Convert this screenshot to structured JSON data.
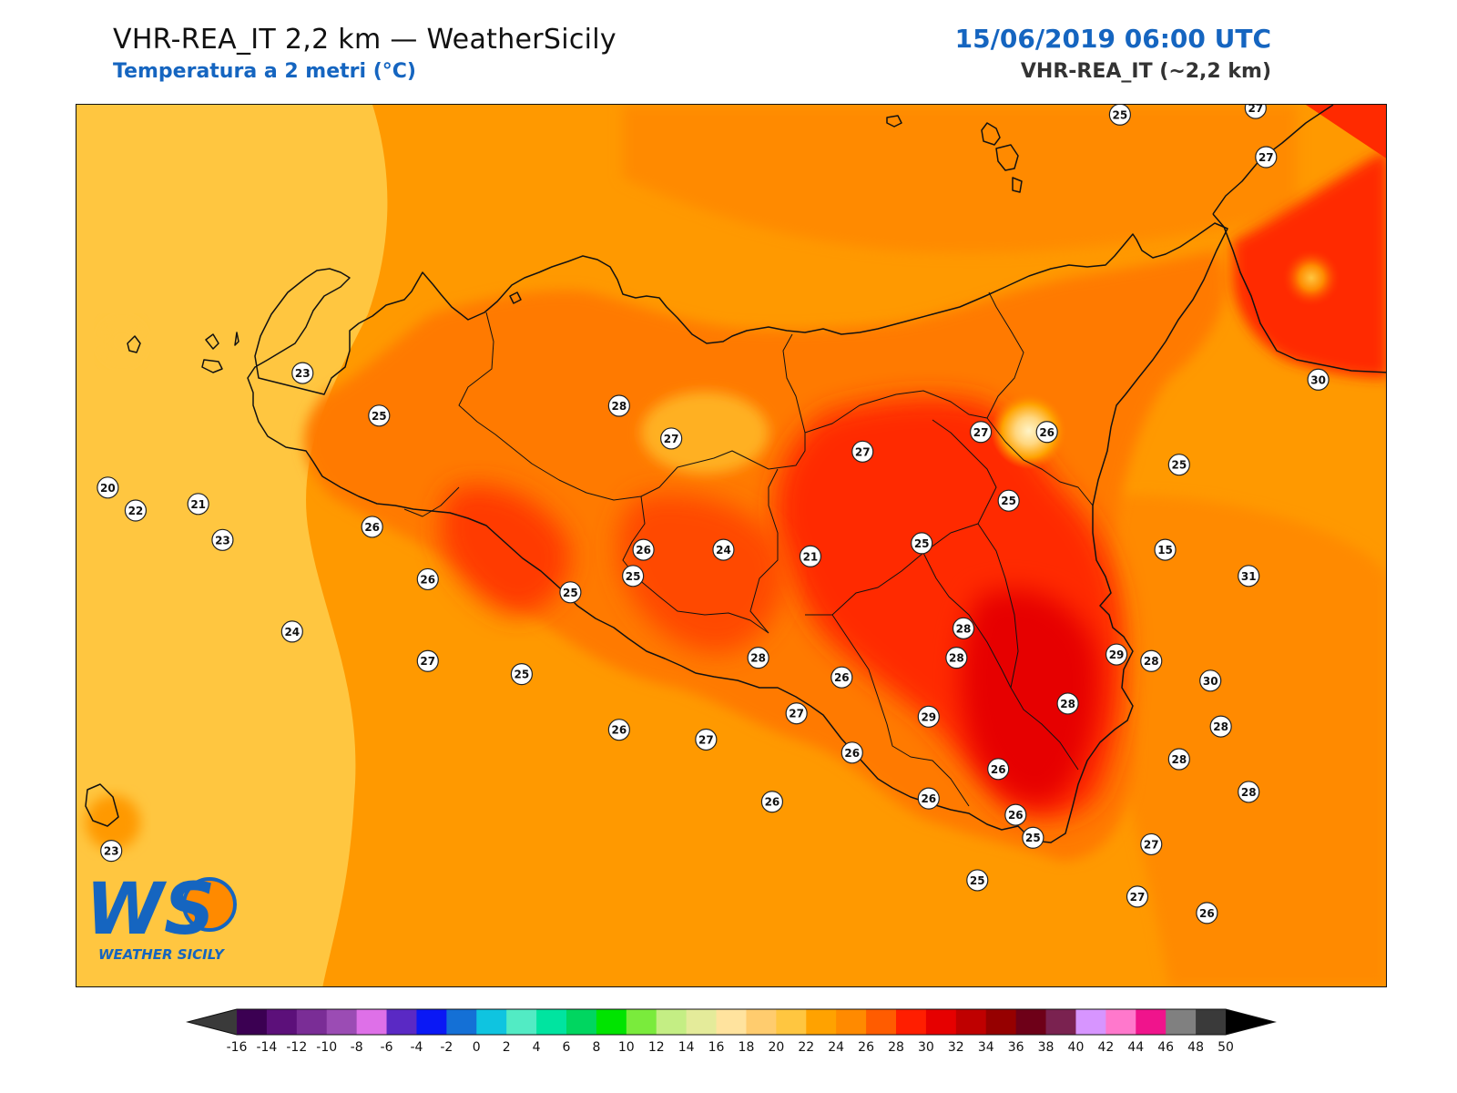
{
  "header": {
    "title": "VHR-REA_IT 2,2 km — WeatherSicily",
    "subtitle": "Temperatura a 2 metri (°C)",
    "datetime": "15/06/2019 06:00 UTC",
    "model": "VHR-REA_IT (~2,2 km)"
  },
  "logo": {
    "letters": "WS",
    "caption": "WEATHER SICILY"
  },
  "colorbar": {
    "ticks": [
      "-16",
      "-14",
      "-12",
      "-10",
      "-8",
      "-6",
      "-4",
      "-2",
      "0",
      "2",
      "4",
      "6",
      "8",
      "10",
      "12",
      "14",
      "16",
      "18",
      "20",
      "22",
      "24",
      "26",
      "28",
      "30",
      "32",
      "34",
      "36",
      "38",
      "40",
      "42",
      "44",
      "46",
      "48",
      "50"
    ],
    "colors": [
      "#3b0052",
      "#5c107a",
      "#7a2d96",
      "#9b4cb4",
      "#de70e8",
      "#5a29c4",
      "#0a18f5",
      "#1470d6",
      "#0fc4e0",
      "#52ebc4",
      "#00e4a0",
      "#00d660",
      "#00e400",
      "#7aeb3c",
      "#c4ee84",
      "#e4eb9a",
      "#ffe39e",
      "#ffcc6e",
      "#ffc640",
      "#ffa200",
      "#ff8a00",
      "#ff5c00",
      "#ff1e00",
      "#e60000",
      "#bf0000",
      "#960000",
      "#6e0018",
      "#7a2250",
      "#d795ff",
      "#ff78cc",
      "#f0148c",
      "#808080",
      "#3a3a3a"
    ],
    "under_color": "#3a3a3a",
    "over_color": "#000000"
  },
  "stations": [
    {
      "value": "25",
      "lon": 14.85,
      "lat": 39.07
    },
    {
      "value": "27",
      "lon": 15.24,
      "lat": 39.09
    },
    {
      "value": "27",
      "lon": 15.27,
      "lat": 38.94
    },
    {
      "value": "23",
      "lon": 12.5,
      "lat": 38.28
    },
    {
      "value": "25",
      "lon": 12.72,
      "lat": 38.15
    },
    {
      "value": "28",
      "lon": 13.41,
      "lat": 38.18
    },
    {
      "value": "27",
      "lon": 13.56,
      "lat": 38.08
    },
    {
      "value": "27",
      "lon": 14.11,
      "lat": 38.04
    },
    {
      "value": "27",
      "lon": 14.45,
      "lat": 38.1
    },
    {
      "value": "26",
      "lon": 14.64,
      "lat": 38.1
    },
    {
      "value": "25",
      "lon": 15.02,
      "lat": 38.0
    },
    {
      "value": "30",
      "lon": 15.42,
      "lat": 38.26
    },
    {
      "value": "20",
      "lon": 11.94,
      "lat": 37.93
    },
    {
      "value": "21",
      "lon": 12.2,
      "lat": 37.88
    },
    {
      "value": "22",
      "lon": 12.02,
      "lat": 37.86
    },
    {
      "value": "26",
      "lon": 12.7,
      "lat": 37.81
    },
    {
      "value": "26",
      "lon": 13.48,
      "lat": 37.74
    },
    {
      "value": "25",
      "lon": 14.28,
      "lat": 37.76
    },
    {
      "value": "25",
      "lon": 14.53,
      "lat": 37.89
    },
    {
      "value": "31",
      "lon": 15.22,
      "lat": 37.66
    },
    {
      "value": "23",
      "lon": 12.27,
      "lat": 37.77
    },
    {
      "value": "26",
      "lon": 12.86,
      "lat": 37.65
    },
    {
      "value": "25",
      "lon": 13.27,
      "lat": 37.61
    },
    {
      "value": "25",
      "lon": 13.45,
      "lat": 37.66
    },
    {
      "value": "24",
      "lon": 13.71,
      "lat": 37.74
    },
    {
      "value": "21",
      "lon": 13.96,
      "lat": 37.72
    },
    {
      "value": "15",
      "lon": 14.98,
      "lat": 37.74
    },
    {
      "value": "24",
      "lon": 12.47,
      "lat": 37.49
    },
    {
      "value": "28",
      "lon": 14.4,
      "lat": 37.5
    },
    {
      "value": "25",
      "lon": 13.13,
      "lat": 37.36
    },
    {
      "value": "27",
      "lon": 12.86,
      "lat": 37.4
    },
    {
      "value": "28",
      "lon": 13.81,
      "lat": 37.41
    },
    {
      "value": "26",
      "lon": 14.05,
      "lat": 37.35
    },
    {
      "value": "28",
      "lon": 14.38,
      "lat": 37.41
    },
    {
      "value": "29",
      "lon": 14.84,
      "lat": 37.42
    },
    {
      "value": "28",
      "lon": 14.94,
      "lat": 37.4
    },
    {
      "value": "30",
      "lon": 15.11,
      "lat": 37.34
    },
    {
      "value": "26",
      "lon": 13.41,
      "lat": 37.19
    },
    {
      "value": "27",
      "lon": 13.66,
      "lat": 37.16
    },
    {
      "value": "27",
      "lon": 13.92,
      "lat": 37.24
    },
    {
      "value": "26",
      "lon": 14.08,
      "lat": 37.12
    },
    {
      "value": "28",
      "lon": 14.7,
      "lat": 37.27
    },
    {
      "value": "29",
      "lon": 14.3,
      "lat": 37.23
    },
    {
      "value": "28",
      "lon": 15.14,
      "lat": 37.2
    },
    {
      "value": "26",
      "lon": 14.5,
      "lat": 37.07
    },
    {
      "value": "28",
      "lon": 15.02,
      "lat": 37.1
    },
    {
      "value": "26",
      "lon": 13.85,
      "lat": 36.97
    },
    {
      "value": "26",
      "lon": 14.3,
      "lat": 36.98
    },
    {
      "value": "26",
      "lon": 14.55,
      "lat": 36.93
    },
    {
      "value": "28",
      "lon": 15.22,
      "lat": 37.0
    },
    {
      "value": "25",
      "lon": 14.6,
      "lat": 36.86
    },
    {
      "value": "27",
      "lon": 14.94,
      "lat": 36.84
    },
    {
      "value": "25",
      "lon": 14.44,
      "lat": 36.73
    },
    {
      "value": "27",
      "lon": 14.9,
      "lat": 36.68
    },
    {
      "value": "26",
      "lon": 15.1,
      "lat": 36.63
    },
    {
      "value": "23",
      "lon": 11.95,
      "lat": 36.82
    }
  ]
}
